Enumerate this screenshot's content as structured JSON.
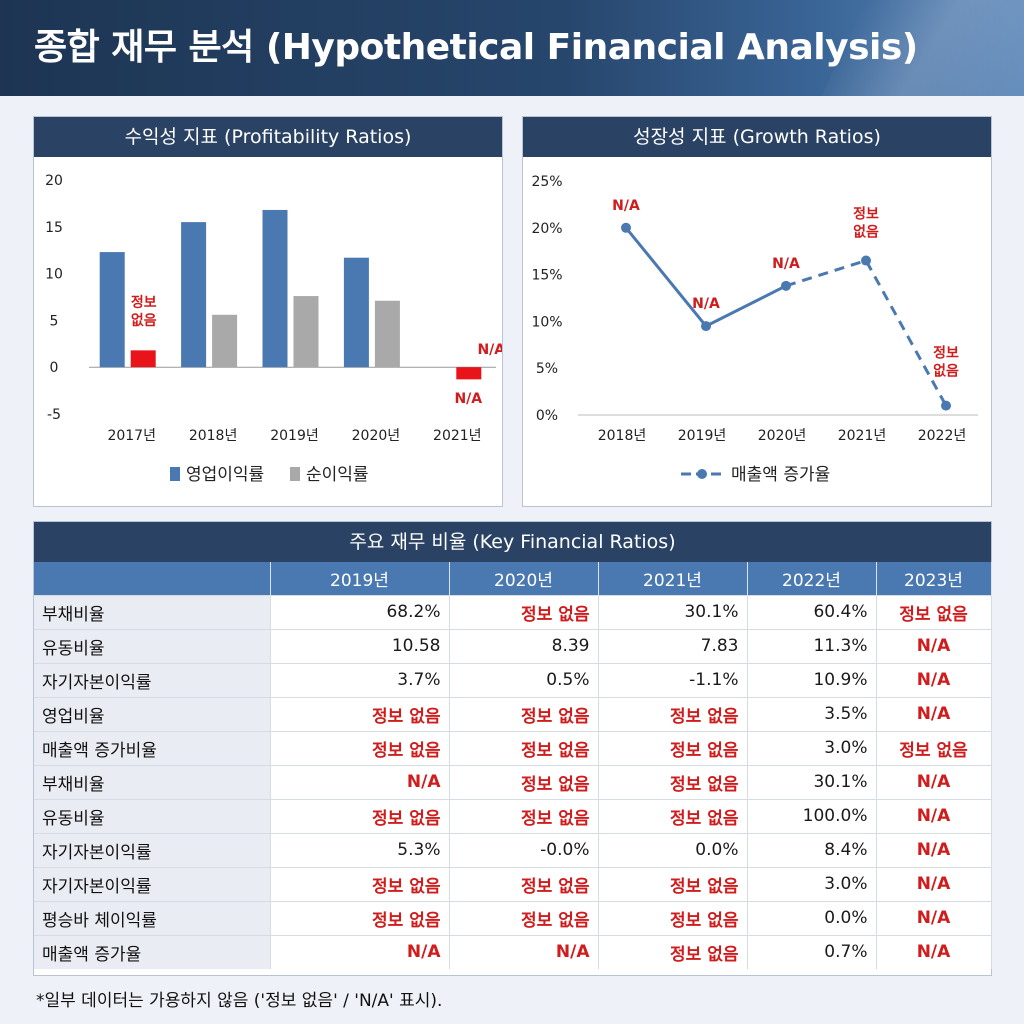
{
  "title": "종합 재무 분석 (Hypothetical Financial Analysis)",
  "profitability": {
    "panel_title": "수익성 지표 (Profitability Ratios)",
    "chart_data": {
      "type": "bar",
      "categories": [
        "2017년",
        "2018년",
        "2019년",
        "2020년",
        "2021년"
      ],
      "series": [
        {
          "name": "영업이익률",
          "values": [
            12.3,
            15.5,
            16.8,
            11.7,
            null
          ],
          "color": "#4a78b0"
        },
        {
          "name": "순이익률",
          "values": [
            1.8,
            5.6,
            7.6,
            7.1,
            -1.3
          ],
          "color": "#a9a9a9"
        }
      ],
      "ylim": [
        -5,
        20
      ],
      "yticks": [
        20,
        15,
        10,
        5,
        0,
        -5
      ],
      "annotations": [
        {
          "category": "2017년",
          "text": "정보\n없음"
        },
        {
          "category": "2021년",
          "text": "N/A",
          "position": "above"
        },
        {
          "category": "2021년",
          "text": "N/A",
          "position": "below"
        }
      ],
      "highlight_color": "#e8141a",
      "legend": "bottom"
    }
  },
  "growth": {
    "panel_title": "성장성 지표 (Growth Ratios)",
    "chart_data": {
      "type": "line",
      "x": [
        "2018년",
        "2019년",
        "2020년",
        "2021년",
        "2022년"
      ],
      "series": [
        {
          "name": "매출액 증가율",
          "values": [
            20,
            9.5,
            13.8,
            16.5,
            1
          ],
          "color": "#4a78b0"
        }
      ],
      "ylim": [
        0,
        25
      ],
      "yticks": [
        "25%",
        "20%",
        "15%",
        "10%",
        "5%",
        "0%"
      ],
      "dashed_from_index": 2,
      "annotations": [
        {
          "index": 0,
          "text": "N/A"
        },
        {
          "index": 1,
          "text": "N/A"
        },
        {
          "index": 2,
          "text": "N/A"
        },
        {
          "index": 3,
          "text": "정보\n없음"
        },
        {
          "index": 4,
          "text": "정보\n없음"
        }
      ],
      "legend": "bottom"
    }
  },
  "table": {
    "title": "주요 재무 비율 (Key Financial Ratios)",
    "columns": [
      "2019년",
      "2020년",
      "2021년",
      "2022년",
      "2023년"
    ],
    "rows": [
      {
        "label": "부채비율",
        "cells": [
          "68.2%",
          "정보 없음",
          "30.1%",
          "60.4%",
          "정보 없음"
        ]
      },
      {
        "label": "유동비율",
        "cells": [
          "10.58",
          "8.39",
          "7.83",
          "11.3%",
          "N/A"
        ]
      },
      {
        "label": "자기자본이익률",
        "cells": [
          "3.7%",
          "0.5%",
          "-1.1%",
          "10.9%",
          "N/A"
        ]
      },
      {
        "label": "영업비율",
        "cells": [
          "정보 없음",
          "정보 없음",
          "정보 없음",
          "3.5%",
          "N/A"
        ]
      },
      {
        "label": "매출액 증가비율",
        "cells": [
          "정보 없음",
          "정보 없음",
          "정보 없음",
          "3.0%",
          "정보 없음"
        ]
      },
      {
        "label": "부채비율",
        "cells": [
          "N/A",
          "정보 없음",
          "정보 없음",
          "30.1%",
          "N/A"
        ]
      },
      {
        "label": "유동비율",
        "cells": [
          "정보 없음",
          "정보 없음",
          "정보 없음",
          "100.0%",
          "N/A"
        ]
      },
      {
        "label": "자기자본이익률",
        "cells": [
          "5.3%",
          "-0.0%",
          "0.0%",
          "8.4%",
          "N/A"
        ]
      },
      {
        "label": "자기자본이익률",
        "cells": [
          "정보 없음",
          "정보 없음",
          "정보 없음",
          "3.0%",
          "N/A"
        ]
      },
      {
        "label": "평승바 체이익률",
        "cells": [
          "정보 없음",
          "정보 없음",
          "정보 없음",
          "0.0%",
          "N/A"
        ]
      },
      {
        "label": "매출액 증가율",
        "cells": [
          "N/A",
          "N/A",
          "정보 없음",
          "0.7%",
          "N/A"
        ]
      }
    ]
  },
  "footnote": "*일부 데이터는 가용하지 않음 ('정보 없음' / 'N/A' 표시)."
}
